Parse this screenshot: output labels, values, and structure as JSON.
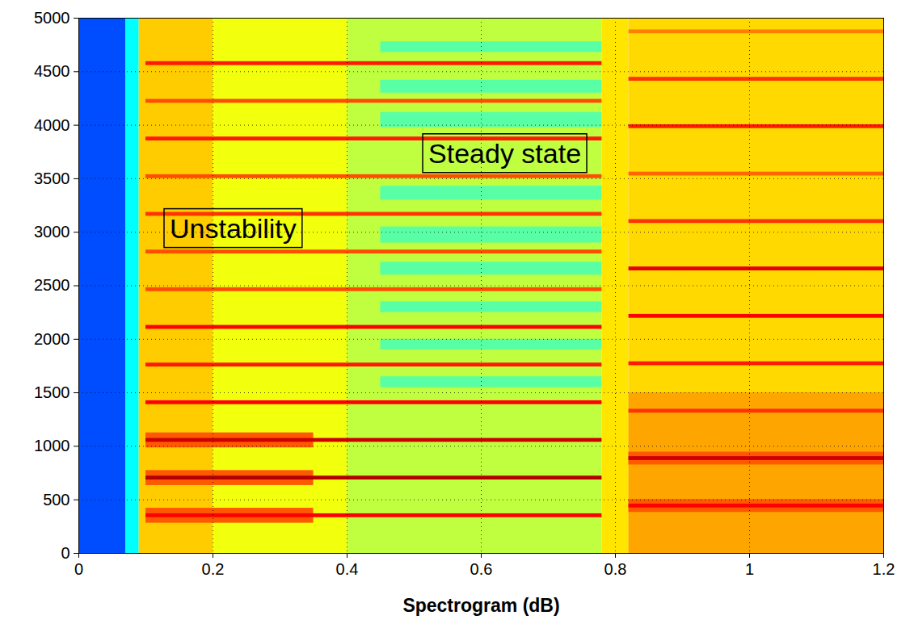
{
  "chart_data": {
    "type": "heatmap",
    "xlabel": "Spectrogram (dB)",
    "xlim": [
      0,
      1.2
    ],
    "xticks": [
      0,
      0.2,
      0.4,
      0.6,
      0.8,
      1,
      1.2
    ],
    "ylim": [
      0,
      5000
    ],
    "yticks": [
      0,
      500,
      1000,
      1500,
      2000,
      2500,
      3000,
      3500,
      4000,
      4500,
      5000
    ],
    "grid": true,
    "color_range": [
      -80,
      0
    ],
    "annotations": [
      {
        "text": "Steady state",
        "x": 0.635,
        "y": 3730
      },
      {
        "text": "Unstability",
        "x": 0.23,
        "y": 3030
      }
    ],
    "cells": [
      {
        "x0": 0,
        "x1": 0.07,
        "y0": 0,
        "y1": 5000,
        "value": -64
      },
      {
        "x0": 0.07,
        "x1": 0.09,
        "y0": 0,
        "y1": 5000,
        "value": -50
      },
      {
        "x0": 0.09,
        "x1": 0.2,
        "y0": 0,
        "y1": 5000,
        "value": -26
      },
      {
        "x0": 0.2,
        "x1": 0.4,
        "y0": 0,
        "y1": 5000,
        "value": -31
      },
      {
        "x0": 0.4,
        "x1": 0.78,
        "y0": 0,
        "y1": 5000,
        "value": -35
      },
      {
        "x0": 0.78,
        "x1": 0.82,
        "y0": 0,
        "y1": 5000,
        "value": -28
      },
      {
        "x0": 0.82,
        "x1": 1.2,
        "y0": 0,
        "y1": 5000,
        "value": -27
      },
      {
        "x0": 0.82,
        "x1": 1.2,
        "y0": 0,
        "y1": 1500,
        "value": -23
      },
      {
        "x0": 0.45,
        "x1": 0.78,
        "y0": 1550,
        "y1": 1650,
        "value": -43
      },
      {
        "x0": 0.45,
        "x1": 0.78,
        "y0": 1900,
        "y1": 2000,
        "value": -43
      },
      {
        "x0": 0.45,
        "x1": 0.78,
        "y0": 2250,
        "y1": 2350,
        "value": -43
      },
      {
        "x0": 0.45,
        "x1": 0.78,
        "y0": 2600,
        "y1": 2720,
        "value": -43
      },
      {
        "x0": 0.45,
        "x1": 0.78,
        "y0": 2900,
        "y1": 3050,
        "value": -43
      },
      {
        "x0": 0.45,
        "x1": 0.78,
        "y0": 3300,
        "y1": 3430,
        "value": -43
      },
      {
        "x0": 0.45,
        "x1": 0.78,
        "y0": 3980,
        "y1": 4120,
        "value": -43
      },
      {
        "x0": 0.45,
        "x1": 0.78,
        "y0": 4300,
        "y1": 4420,
        "value": -43
      },
      {
        "x0": 0.45,
        "x1": 0.78,
        "y0": 4680,
        "y1": 4780,
        "value": -43
      },
      {
        "x0": 0.1,
        "x1": 0.35,
        "y0": 282,
        "y1": 422,
        "value": -17
      },
      {
        "x0": 0.1,
        "x1": 0.35,
        "y0": 634,
        "y1": 774,
        "value": -17
      },
      {
        "x0": 0.1,
        "x1": 0.35,
        "y0": 986,
        "y1": 1126,
        "value": -17
      },
      {
        "x0": 0.1,
        "x1": 0.78,
        "y0": 334,
        "y1": 370,
        "value": -10
      },
      {
        "x0": 0.1,
        "x1": 0.78,
        "y0": 686,
        "y1": 722,
        "value": -4
      },
      {
        "x0": 0.1,
        "x1": 0.78,
        "y0": 1038,
        "y1": 1074,
        "value": -6
      },
      {
        "x0": 0.1,
        "x1": 0.78,
        "y0": 1390,
        "y1": 1426,
        "value": -10
      },
      {
        "x0": 0.1,
        "x1": 0.78,
        "y0": 1742,
        "y1": 1778,
        "value": -12
      },
      {
        "x0": 0.1,
        "x1": 0.78,
        "y0": 2094,
        "y1": 2130,
        "value": -10
      },
      {
        "x0": 0.1,
        "x1": 0.78,
        "y0": 2446,
        "y1": 2482,
        "value": -16
      },
      {
        "x0": 0.1,
        "x1": 0.78,
        "y0": 2798,
        "y1": 2834,
        "value": -16
      },
      {
        "x0": 0.1,
        "x1": 0.78,
        "y0": 3150,
        "y1": 3186,
        "value": -14
      },
      {
        "x0": 0.1,
        "x1": 0.78,
        "y0": 3502,
        "y1": 3538,
        "value": -16
      },
      {
        "x0": 0.1,
        "x1": 0.78,
        "y0": 3854,
        "y1": 3890,
        "value": -12
      },
      {
        "x0": 0.1,
        "x1": 0.78,
        "y0": 4206,
        "y1": 4242,
        "value": -16
      },
      {
        "x0": 0.1,
        "x1": 0.78,
        "y0": 4558,
        "y1": 4594,
        "value": -12
      },
      {
        "x0": 0.82,
        "x1": 1.2,
        "y0": 383,
        "y1": 503,
        "value": -17
      },
      {
        "x0": 0.82,
        "x1": 1.2,
        "y0": 826,
        "y1": 946,
        "value": -17
      },
      {
        "x0": 0.82,
        "x1": 1.2,
        "y0": 425,
        "y1": 461,
        "value": -10
      },
      {
        "x0": 0.82,
        "x1": 1.2,
        "y0": 868,
        "y1": 904,
        "value": -6
      },
      {
        "x0": 0.82,
        "x1": 1.2,
        "y0": 1311,
        "y1": 1347,
        "value": -14
      },
      {
        "x0": 0.82,
        "x1": 1.2,
        "y0": 1754,
        "y1": 1790,
        "value": -12
      },
      {
        "x0": 0.82,
        "x1": 1.2,
        "y0": 2197,
        "y1": 2233,
        "value": -10
      },
      {
        "x0": 0.82,
        "x1": 1.2,
        "y0": 2640,
        "y1": 2676,
        "value": -8
      },
      {
        "x0": 0.82,
        "x1": 1.2,
        "y0": 3083,
        "y1": 3119,
        "value": -14
      },
      {
        "x0": 0.82,
        "x1": 1.2,
        "y0": 3526,
        "y1": 3562,
        "value": -18
      },
      {
        "x0": 0.82,
        "x1": 1.2,
        "y0": 3969,
        "y1": 4005,
        "value": -12
      },
      {
        "x0": 0.82,
        "x1": 1.2,
        "y0": 4412,
        "y1": 4448,
        "value": -14
      },
      {
        "x0": 0.82,
        "x1": 1.2,
        "y0": 4855,
        "y1": 4891,
        "value": -20
      }
    ]
  }
}
